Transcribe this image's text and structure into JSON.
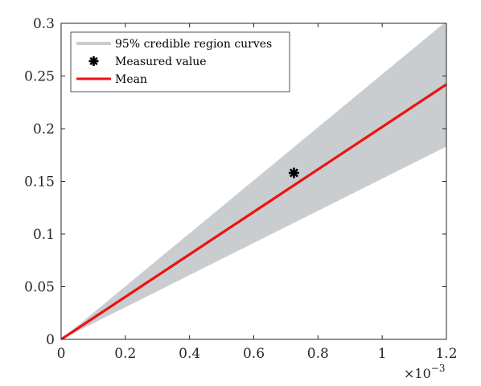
{
  "chart_data": {
    "type": "line",
    "title": "",
    "xlabel": "",
    "ylabel": "",
    "x_multiplier": {
      "base": "×10",
      "exponent": "−3"
    },
    "xlim": [
      0,
      1.2
    ],
    "ylim": [
      0,
      0.3
    ],
    "x_ticks": [
      0,
      0.2,
      0.4,
      0.6,
      0.8,
      1,
      1.2
    ],
    "x_tick_labels": [
      "0",
      "0.2",
      "0.4",
      "0.6",
      "0.8",
      "1",
      "1.2"
    ],
    "y_ticks": [
      0,
      0.05,
      0.1,
      0.15,
      0.2,
      0.25,
      0.3
    ],
    "y_tick_labels": [
      "0",
      "0.05",
      "0.1",
      "0.15",
      "0.2",
      "0.25",
      "0.3"
    ],
    "grid": false,
    "legend_position": "top-left",
    "series": [
      {
        "name": "95% credible region curves",
        "kind": "band",
        "color": "#c9cdd0",
        "x": [
          0,
          1.2
        ],
        "lower": [
          0,
          0.183
        ],
        "upper": [
          0,
          0.302
        ]
      },
      {
        "name": "Measured value",
        "kind": "marker",
        "marker": "asterisk",
        "color": "#000000",
        "x": [
          0.725
        ],
        "y": [
          0.158
        ]
      },
      {
        "name": "Mean",
        "kind": "line",
        "color": "#ee1111",
        "x": [
          0,
          1.2
        ],
        "y": [
          0,
          0.242
        ]
      }
    ]
  }
}
